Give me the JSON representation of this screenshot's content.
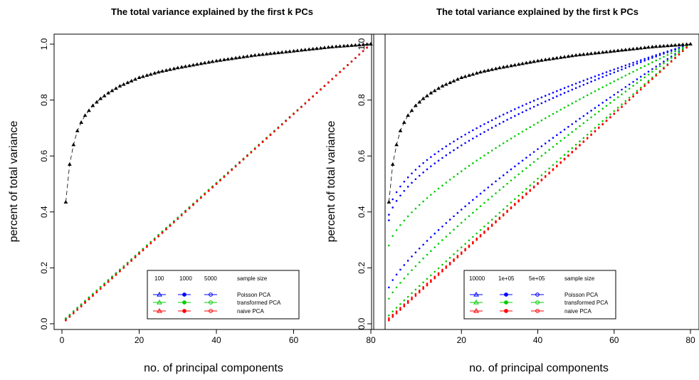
{
  "chart_data": [
    {
      "type": "scatter",
      "title": "The total variance explained by the first k PCs",
      "xlabel": "no. of principal components",
      "ylabel": "percent of total variance",
      "xlim": [
        0,
        80
      ],
      "ylim": [
        0,
        1
      ],
      "xticks": [
        0,
        20,
        40,
        60,
        80
      ],
      "yticks": [
        0.0,
        0.2,
        0.4,
        0.6,
        0.8,
        1.0
      ],
      "x": [
        1,
        80
      ],
      "reference_curve": {
        "name": "",
        "color": "#000000",
        "points": [
          [
            1,
            0.435
          ],
          [
            2,
            0.57
          ],
          [
            3,
            0.64
          ],
          [
            4,
            0.69
          ],
          [
            5,
            0.72
          ],
          [
            6,
            0.745
          ],
          [
            8,
            0.78
          ],
          [
            10,
            0.805
          ],
          [
            12,
            0.825
          ],
          [
            15,
            0.85
          ],
          [
            20,
            0.88
          ],
          [
            25,
            0.9
          ],
          [
            30,
            0.915
          ],
          [
            40,
            0.94
          ],
          [
            50,
            0.96
          ],
          [
            60,
            0.975
          ],
          [
            70,
            0.99
          ],
          [
            80,
            1.0
          ]
        ]
      },
      "series": [
        {
          "name": "Poisson PCA",
          "size": "100",
          "color": "#0000ff",
          "start": 0.02,
          "curve": 1.0
        },
        {
          "name": "Poisson PCA",
          "size": "1000",
          "color": "#0000ff",
          "start": 0.018,
          "curve": 1.0
        },
        {
          "name": "Poisson PCA",
          "size": "5000",
          "color": "#0000ff",
          "start": 0.016,
          "curve": 1.0
        },
        {
          "name": "transformed PCA",
          "size": "100",
          "color": "#00cc00",
          "start": 0.02,
          "curve": 1.0
        },
        {
          "name": "transformed PCA",
          "size": "1000",
          "color": "#00cc00",
          "start": 0.018,
          "curve": 1.0
        },
        {
          "name": "transformed PCA",
          "size": "5000",
          "color": "#00cc00",
          "start": 0.016,
          "curve": 1.0
        },
        {
          "name": "naive PCA",
          "size": "100",
          "color": "#ff0000",
          "start": 0.014,
          "curve": 1.0
        },
        {
          "name": "naive PCA",
          "size": "1000",
          "color": "#ff0000",
          "start": 0.013,
          "curve": 1.0
        },
        {
          "name": "naive PCA",
          "size": "5000",
          "color": "#ff0000",
          "start": 0.012,
          "curve": 1.0
        }
      ],
      "legend": {
        "placement": "bottom-right",
        "sizes": [
          "100",
          "1000",
          "5000"
        ],
        "size_header": "sample size",
        "methods": [
          "Poisson PCA",
          "transformed PCA",
          "naive PCA"
        ]
      }
    },
    {
      "type": "scatter",
      "title": "The total variance explained by the first k PCs",
      "xlabel": "no. of principal components",
      "ylabel": "percent of total variance",
      "xlim": [
        0,
        80
      ],
      "ylim": [
        0,
        1
      ],
      "xticks": [
        20,
        40,
        60,
        80
      ],
      "yticks": [
        0.0,
        0.2,
        0.4,
        0.6,
        0.8,
        1.0
      ],
      "x": [
        1,
        80
      ],
      "reference_curve": {
        "name": "",
        "color": "#000000",
        "points": [
          [
            1,
            0.435
          ],
          [
            2,
            0.57
          ],
          [
            3,
            0.64
          ],
          [
            4,
            0.69
          ],
          [
            5,
            0.72
          ],
          [
            6,
            0.745
          ],
          [
            8,
            0.78
          ],
          [
            10,
            0.805
          ],
          [
            12,
            0.825
          ],
          [
            15,
            0.85
          ],
          [
            20,
            0.88
          ],
          [
            25,
            0.9
          ],
          [
            30,
            0.915
          ],
          [
            40,
            0.94
          ],
          [
            50,
            0.96
          ],
          [
            60,
            0.975
          ],
          [
            70,
            0.99
          ],
          [
            80,
            1.0
          ]
        ]
      },
      "series": [
        {
          "name": "Poisson PCA",
          "size": "10000",
          "color": "#0000ff",
          "start": 0.13,
          "curve": 0.8
        },
        {
          "name": "Poisson PCA",
          "size": "1e+05",
          "color": "#0000ff",
          "start": 0.37,
          "curve": 0.6
        },
        {
          "name": "Poisson PCA",
          "size": "5e+05",
          "color": "#0000ff",
          "start": 0.39,
          "curve": 0.55
        },
        {
          "name": "transformed PCA",
          "size": "10000",
          "color": "#00cc00",
          "start": 0.03,
          "curve": 0.97
        },
        {
          "name": "transformed PCA",
          "size": "1e+05",
          "color": "#00cc00",
          "start": 0.09,
          "curve": 0.85
        },
        {
          "name": "transformed PCA",
          "size": "5e+05",
          "color": "#00cc00",
          "start": 0.28,
          "curve": 0.7
        },
        {
          "name": "naive PCA",
          "size": "10000",
          "color": "#ff0000",
          "start": 0.02,
          "curve": 1.0
        },
        {
          "name": "naive PCA",
          "size": "1e+05",
          "color": "#ff0000",
          "start": 0.015,
          "curve": 1.0
        },
        {
          "name": "naive PCA",
          "size": "5e+05",
          "color": "#ff0000",
          "start": 0.012,
          "curve": 1.0
        }
      ],
      "legend": {
        "placement": "bottom-right",
        "sizes": [
          "10000",
          "1e+05",
          "5e+05"
        ],
        "size_header": "sample size",
        "methods": [
          "Poisson PCA",
          "transformed PCA",
          "naive PCA"
        ]
      }
    }
  ]
}
